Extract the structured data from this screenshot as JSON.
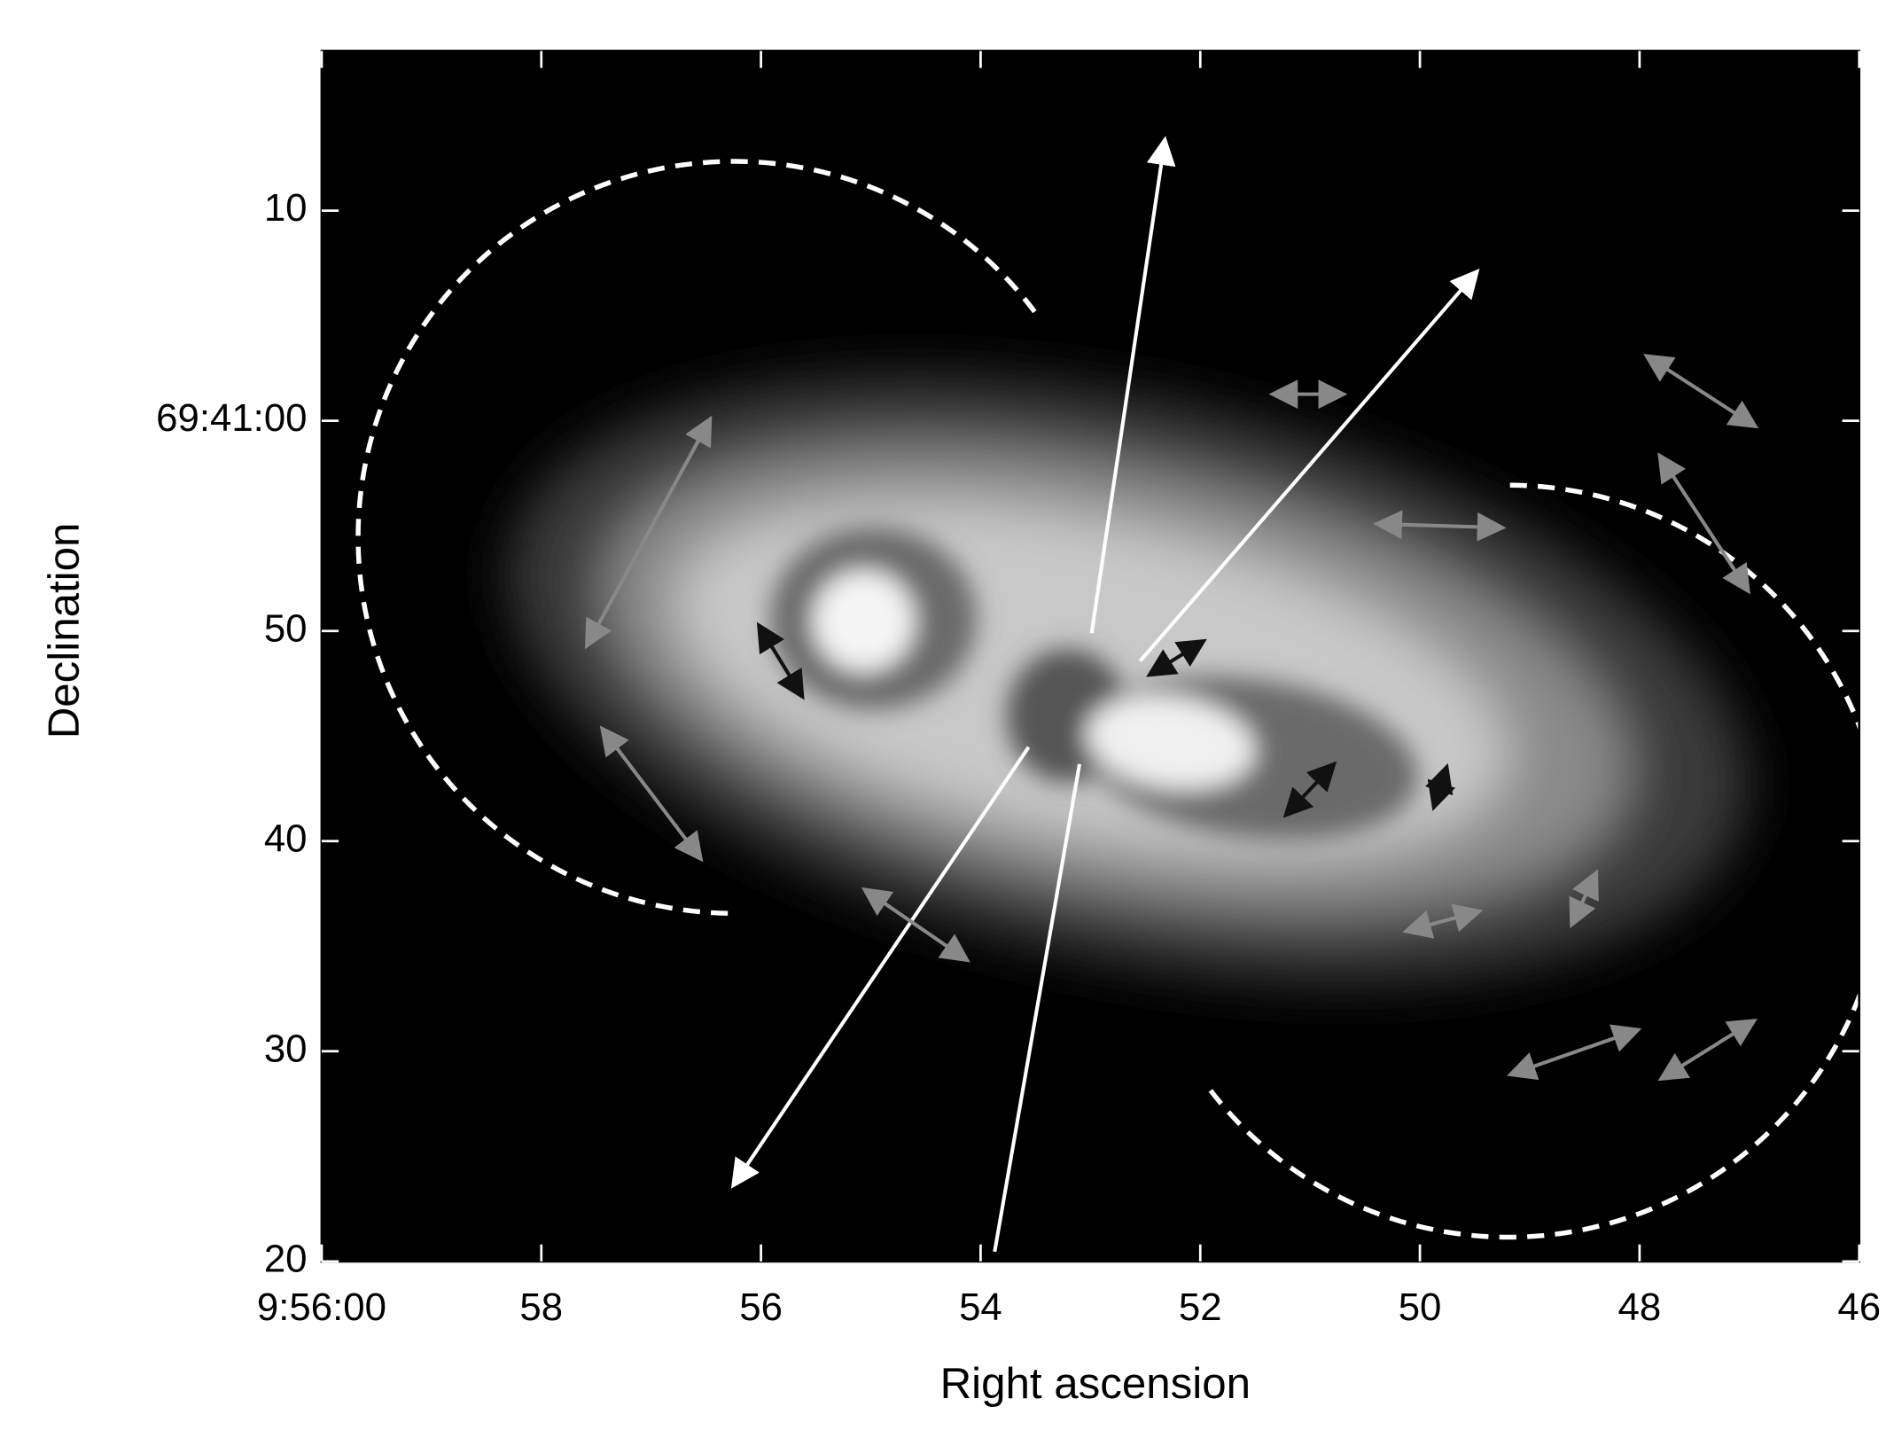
{
  "chart_data": {
    "type": "image",
    "xlabel": "Right ascension",
    "ylabel": "Declination",
    "xlim": [
      60,
      46
    ],
    "ylim": [
      20,
      77.6
    ],
    "xticks": [
      {
        "value": 60,
        "label": "9:56:00"
      },
      58,
      56,
      54,
      52,
      50,
      48,
      46
    ],
    "yticks": [
      20,
      30,
      40,
      50,
      {
        "value": 60,
        "label": "69:41:00"
      },
      {
        "value": 70,
        "label": "10"
      }
    ]
  }
}
